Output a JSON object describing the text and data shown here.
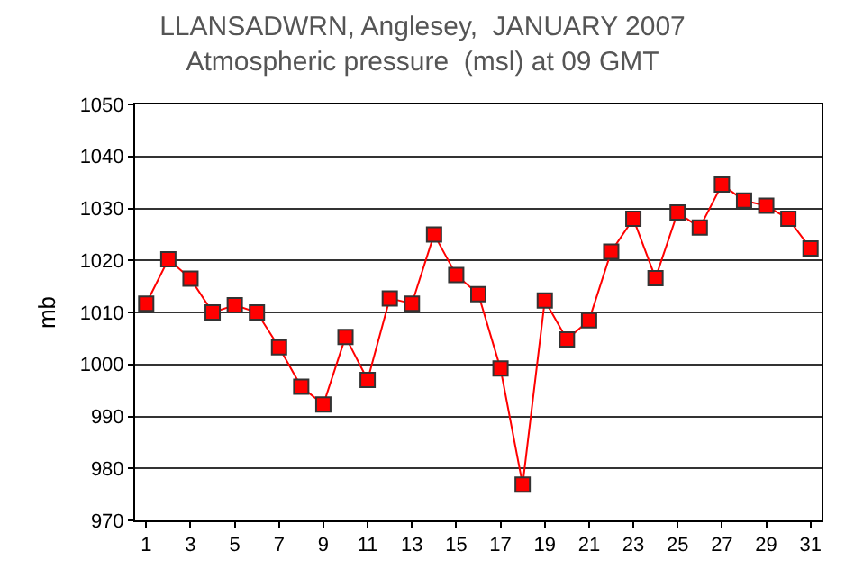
{
  "chart_data": {
    "type": "line",
    "title": "LLANSADWRN, Anglesey,  JANUARY 2007",
    "subtitle": "Atmospheric pressure  (msl) at 09 GMT",
    "ylabel": "mb",
    "x": [
      1,
      2,
      3,
      4,
      5,
      6,
      7,
      8,
      9,
      10,
      11,
      12,
      13,
      14,
      15,
      16,
      17,
      18,
      19,
      20,
      21,
      22,
      23,
      24,
      25,
      26,
      27,
      28,
      29,
      30,
      31
    ],
    "series": [
      {
        "color": "#ff0000",
        "values": [
          1011.7,
          1020.2,
          1016.5,
          1010,
          1011.4,
          1010,
          1003.3,
          995.7,
          992.3,
          1005.3,
          997,
          1012.7,
          1011.7,
          1025,
          1017.2,
          1013.5,
          999.2,
          976.9,
          1012.3,
          1004.8,
          1008.5,
          1021.7,
          1028,
          1016.6,
          1029.2,
          1026.3,
          1034.6,
          1031.5,
          1030.5,
          1028,
          1022.3
        ]
      }
    ],
    "xlim": [
      0.5,
      31.5
    ],
    "xticks": [
      1,
      3,
      5,
      7,
      9,
      11,
      13,
      15,
      17,
      19,
      21,
      23,
      25,
      27,
      29,
      31
    ],
    "ylim": [
      970,
      1050
    ],
    "yticks": [
      970,
      980,
      990,
      1000,
      1010,
      1020,
      1030,
      1040,
      1050
    ],
    "grid": "y",
    "marker": "square",
    "line_style": "solid"
  }
}
